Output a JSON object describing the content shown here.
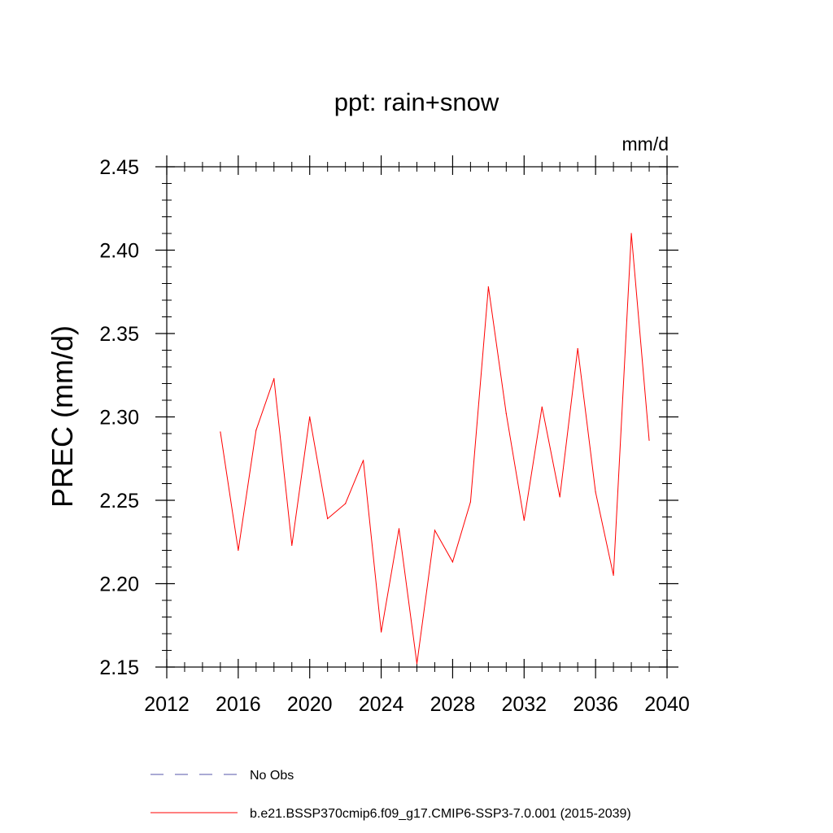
{
  "chart_data": {
    "type": "line",
    "title": "ppt: rain+snow",
    "units_label": "mm/d",
    "xlabel": "",
    "ylabel": "PREC  (mm/d)",
    "xlim": [
      2012,
      2040
    ],
    "ylim": [
      2.15,
      2.45
    ],
    "x_ticks": [
      2012,
      2016,
      2020,
      2024,
      2028,
      2032,
      2036,
      2040
    ],
    "x_tick_labels": [
      "2012",
      "2016",
      "2020",
      "2024",
      "2028",
      "2032",
      "2036",
      "2040"
    ],
    "y_ticks": [
      2.15,
      2.2,
      2.25,
      2.3,
      2.35,
      2.4,
      2.45
    ],
    "y_tick_labels": [
      "2.15",
      "2.20",
      "2.25",
      "2.30",
      "2.35",
      "2.40",
      "2.45"
    ],
    "x_minor_step": 1,
    "y_minor_step": 0.01,
    "grid": false,
    "legend_position": "bottom",
    "series": [
      {
        "name": "b.e21.BSSP370cmip6.f09_g17.CMIP6-SSP3-7.0.001 (2015-2039)",
        "color": "#ff0000",
        "style": "solid",
        "x": [
          2015,
          2016,
          2017,
          2018,
          2019,
          2020,
          2021,
          2022,
          2023,
          2024,
          2025,
          2026,
          2027,
          2028,
          2029,
          2030,
          2031,
          2032,
          2033,
          2034,
          2035,
          2036,
          2037,
          2038,
          2039
        ],
        "values": [
          2.291,
          2.22,
          2.292,
          2.323,
          2.223,
          2.3,
          2.239,
          2.248,
          2.274,
          2.171,
          2.233,
          2.152,
          2.232,
          2.213,
          2.249,
          2.378,
          2.302,
          2.238,
          2.306,
          2.252,
          2.341,
          2.255,
          2.205,
          2.41,
          2.286
        ]
      }
    ],
    "legend": [
      {
        "label": "No Obs",
        "color": "#5555aa",
        "style": "dashed"
      },
      {
        "label": "b.e21.BSSP370cmip6.f09_g17.CMIP6-SSP3-7.0.001 (2015-2039)",
        "color": "#ff0000",
        "style": "solid"
      }
    ]
  }
}
